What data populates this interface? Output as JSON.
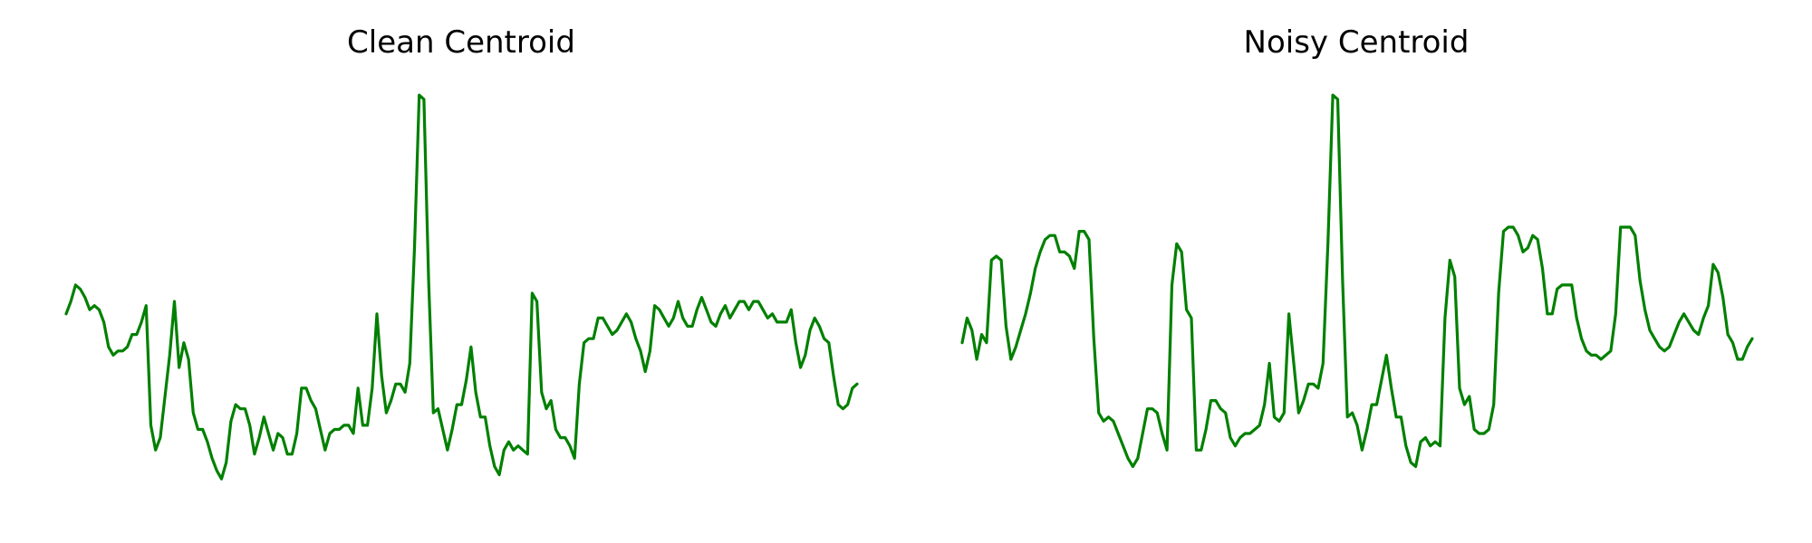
{
  "line_color": "#008000",
  "chart_data": [
    {
      "type": "line",
      "title": "Clean Centroid",
      "xlabel": "",
      "ylabel": "",
      "grid": false,
      "axes_visible": false,
      "ylim": [
        0,
        1
      ],
      "series": [
        {
          "values": [
            0.45,
            0.48,
            0.52,
            0.51,
            0.49,
            0.46,
            0.47,
            0.46,
            0.43,
            0.37,
            0.35,
            0.36,
            0.36,
            0.37,
            0.4,
            0.4,
            0.43,
            0.47,
            0.18,
            0.12,
            0.15,
            0.25,
            0.35,
            0.48,
            0.32,
            0.38,
            0.34,
            0.21,
            0.17,
            0.17,
            0.14,
            0.1,
            0.07,
            0.05,
            0.09,
            0.19,
            0.23,
            0.22,
            0.22,
            0.18,
            0.11,
            0.15,
            0.2,
            0.16,
            0.12,
            0.16,
            0.15,
            0.11,
            0.11,
            0.16,
            0.27,
            0.27,
            0.24,
            0.22,
            0.17,
            0.12,
            0.16,
            0.17,
            0.17,
            0.18,
            0.18,
            0.16,
            0.27,
            0.18,
            0.18,
            0.27,
            0.45,
            0.3,
            0.21,
            0.24,
            0.28,
            0.28,
            0.26,
            0.33,
            0.61,
            0.98,
            0.97,
            0.53,
            0.21,
            0.22,
            0.17,
            0.12,
            0.17,
            0.23,
            0.23,
            0.29,
            0.37,
            0.26,
            0.2,
            0.2,
            0.13,
            0.08,
            0.06,
            0.12,
            0.14,
            0.12,
            0.13,
            0.12,
            0.11,
            0.5,
            0.48,
            0.26,
            0.22,
            0.24,
            0.17,
            0.15,
            0.15,
            0.13,
            0.1,
            0.28,
            0.38,
            0.39,
            0.39,
            0.44,
            0.44,
            0.42,
            0.4,
            0.41,
            0.43,
            0.45,
            0.43,
            0.39,
            0.36,
            0.31,
            0.36,
            0.47,
            0.46,
            0.44,
            0.42,
            0.44,
            0.48,
            0.44,
            0.42,
            0.42,
            0.46,
            0.49,
            0.46,
            0.43,
            0.42,
            0.45,
            0.47,
            0.44,
            0.46,
            0.48,
            0.48,
            0.46,
            0.48,
            0.48,
            0.46,
            0.44,
            0.45,
            0.43,
            0.43,
            0.43,
            0.46,
            0.38,
            0.32,
            0.35,
            0.41,
            0.44,
            0.42,
            0.39,
            0.38,
            0.3,
            0.23,
            0.22,
            0.23,
            0.27,
            0.28
          ]
        }
      ]
    },
    {
      "type": "line",
      "title": "Noisy Centroid",
      "xlabel": "",
      "ylabel": "",
      "grid": false,
      "axes_visible": false,
      "ylim": [
        0,
        1
      ],
      "series": [
        {
          "values": [
            0.38,
            0.44,
            0.41,
            0.34,
            0.4,
            0.38,
            0.58,
            0.59,
            0.58,
            0.42,
            0.34,
            0.37,
            0.41,
            0.45,
            0.5,
            0.56,
            0.6,
            0.63,
            0.64,
            0.64,
            0.6,
            0.6,
            0.59,
            0.56,
            0.65,
            0.65,
            0.63,
            0.39,
            0.21,
            0.19,
            0.2,
            0.19,
            0.16,
            0.13,
            0.1,
            0.08,
            0.1,
            0.16,
            0.22,
            0.22,
            0.21,
            0.16,
            0.12,
            0.52,
            0.62,
            0.6,
            0.46,
            0.44,
            0.12,
            0.12,
            0.17,
            0.24,
            0.24,
            0.22,
            0.21,
            0.15,
            0.13,
            0.15,
            0.16,
            0.16,
            0.17,
            0.18,
            0.23,
            0.33,
            0.2,
            0.19,
            0.21,
            0.45,
            0.33,
            0.21,
            0.24,
            0.28,
            0.28,
            0.27,
            0.33,
            0.62,
            0.98,
            0.97,
            0.53,
            0.2,
            0.21,
            0.18,
            0.12,
            0.17,
            0.23,
            0.23,
            0.29,
            0.35,
            0.27,
            0.2,
            0.2,
            0.13,
            0.09,
            0.08,
            0.14,
            0.15,
            0.13,
            0.14,
            0.13,
            0.44,
            0.58,
            0.54,
            0.27,
            0.23,
            0.25,
            0.17,
            0.16,
            0.16,
            0.17,
            0.23,
            0.5,
            0.65,
            0.66,
            0.66,
            0.64,
            0.6,
            0.61,
            0.64,
            0.63,
            0.56,
            0.45,
            0.45,
            0.51,
            0.52,
            0.52,
            0.52,
            0.44,
            0.39,
            0.36,
            0.35,
            0.35,
            0.34,
            0.35,
            0.36,
            0.45,
            0.66,
            0.66,
            0.66,
            0.64,
            0.53,
            0.46,
            0.41,
            0.39,
            0.37,
            0.36,
            0.37,
            0.4,
            0.43,
            0.45,
            0.43,
            0.41,
            0.4,
            0.44,
            0.47,
            0.57,
            0.55,
            0.49,
            0.4,
            0.38,
            0.34,
            0.34,
            0.37,
            0.39
          ]
        }
      ]
    }
  ]
}
